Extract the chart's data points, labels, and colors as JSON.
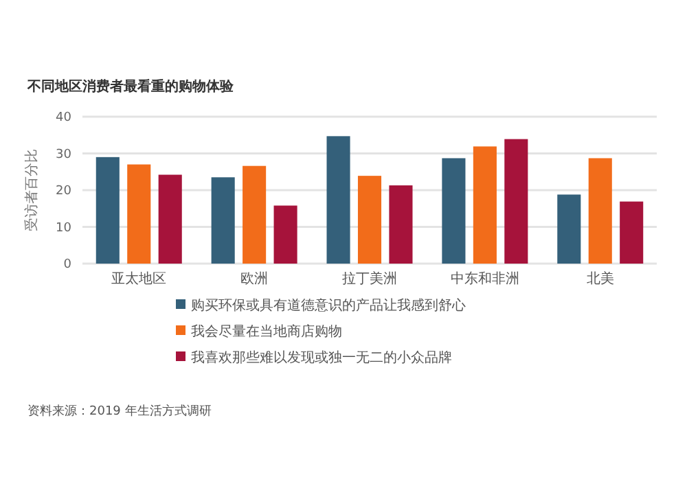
{
  "chart_data": {
    "type": "bar",
    "title": "不同地区消费者最看重的购物体验",
    "ylabel": "受访者百分比",
    "categories": [
      "亚太地区",
      "欧洲",
      "拉丁美洲",
      "中东和非洲",
      "北美"
    ],
    "series": [
      {
        "name": "购买环保或具有道德意识的产品让我感到舒心",
        "color": "#34607a",
        "values": [
          29,
          23.5,
          34.7,
          28.7,
          18.8
        ]
      },
      {
        "name": "我会尽量在当地商店购物",
        "color": "#f26c1a",
        "values": [
          27,
          26.6,
          23.9,
          31.9,
          28.7
        ]
      },
      {
        "name": "我喜欢那些难以发现或独一无二的小众品牌",
        "color": "#a6133b",
        "values": [
          24.2,
          15.8,
          21.3,
          33.9,
          16.9
        ]
      }
    ],
    "ylim": [
      0,
      40
    ],
    "yticks": [
      0,
      10,
      20,
      30,
      40
    ],
    "grid": "y",
    "legend": "bottom",
    "annotations": [
      "资料来源：2019 年生活方式调研"
    ]
  }
}
